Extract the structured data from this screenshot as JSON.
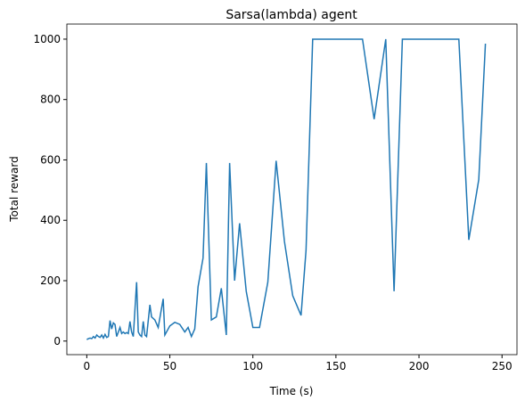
{
  "chart_data": {
    "type": "line",
    "title": "Sarsa(lambda) agent",
    "xlabel": "Time (s)",
    "ylabel": "Total reward",
    "x": [
      0,
      1,
      2,
      3,
      4,
      5,
      6,
      7,
      8,
      9,
      10,
      11,
      12,
      13,
      14,
      15,
      16,
      17,
      18,
      19,
      20,
      21,
      22,
      23,
      24,
      25,
      26,
      27,
      28,
      30,
      31,
      32,
      33,
      34,
      35,
      36,
      38,
      39,
      41,
      43,
      46,
      47,
      50,
      53,
      56,
      59,
      61,
      63,
      65,
      67,
      70,
      72,
      75,
      78,
      81,
      84,
      86,
      89,
      92,
      96,
      100,
      104,
      109,
      114,
      119,
      124,
      129,
      132,
      136,
      166,
      173,
      180,
      185,
      190,
      224,
      230,
      236,
      240
    ],
    "series": [
      {
        "name": "Sarsa(lambda)",
        "color": "#1f77b4",
        "values": [
          5,
          8,
          10,
          8,
          15,
          10,
          20,
          15,
          12,
          20,
          10,
          22,
          12,
          15,
          68,
          40,
          60,
          55,
          15,
          30,
          45,
          25,
          30,
          25,
          28,
          25,
          65,
          30,
          15,
          195,
          30,
          20,
          15,
          65,
          20,
          15,
          120,
          80,
          70,
          45,
          140,
          20,
          50,
          62,
          55,
          30,
          45,
          15,
          40,
          180,
          275,
          590,
          70,
          80,
          175,
          20,
          590,
          200,
          390,
          165,
          45,
          45,
          195,
          597,
          330,
          150,
          85,
          300,
          1000,
          1000,
          735,
          1000,
          165,
          1000,
          1000,
          335,
          535,
          985
        ]
      }
    ],
    "xlim": [
      -12,
      259
    ],
    "ylim": [
      -45,
      1050
    ],
    "xticks": [
      0,
      50,
      100,
      150,
      200,
      250
    ],
    "yticks": [
      0,
      200,
      400,
      600,
      800,
      1000
    ]
  }
}
